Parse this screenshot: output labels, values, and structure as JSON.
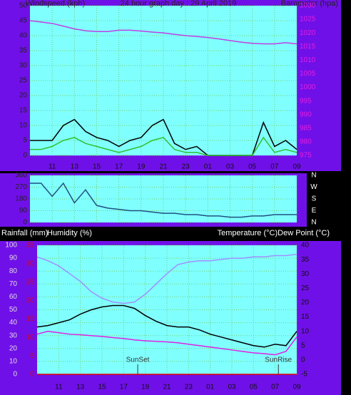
{
  "chart_data": [
    {
      "type": "line",
      "title": "24 hour graph day : 29 April 2019",
      "y_label": "Windspeed (kph)",
      "y2_label": "Barometer (hpa)",
      "x": [
        0,
        1,
        2,
        3,
        4,
        5,
        6,
        7,
        8,
        9,
        10,
        11,
        12,
        13,
        14,
        15,
        16,
        17,
        18,
        19,
        20,
        21,
        22,
        23,
        24
      ],
      "xlim": [
        0,
        24
      ],
      "xticks": [
        {
          "value": 2,
          "label": "11"
        },
        {
          "value": 4,
          "label": "13"
        },
        {
          "value": 6,
          "label": "15"
        },
        {
          "value": 8,
          "label": "17"
        },
        {
          "value": 10,
          "label": "19"
        },
        {
          "value": 12,
          "label": "21"
        },
        {
          "value": 14,
          "label": "23"
        },
        {
          "value": 16,
          "label": "01"
        },
        {
          "value": 18,
          "label": "03"
        },
        {
          "value": 20,
          "label": "05"
        },
        {
          "value": 22,
          "label": "07"
        },
        {
          "value": 24,
          "label": "09"
        }
      ],
      "ylim": [
        0,
        50
      ],
      "yticks": [
        0,
        5,
        10,
        15,
        20,
        25,
        30,
        35,
        40,
        45,
        50
      ],
      "y2lim": [
        975,
        1030
      ],
      "y2ticks": [
        975,
        980,
        985,
        990,
        995,
        1000,
        1005,
        1010,
        1015,
        1020,
        1025,
        1030
      ],
      "grid": true,
      "series": [
        {
          "color": "#000000",
          "values": [
            5,
            5,
            5,
            10,
            12,
            8,
            6,
            5,
            3,
            5,
            6,
            10,
            12,
            4,
            2,
            3,
            0,
            0,
            0,
            0,
            0,
            11,
            3,
            5,
            2
          ]
        },
        {
          "color": "#30c030",
          "values": [
            2,
            2,
            3,
            5,
            6,
            4,
            3,
            2,
            1,
            2,
            3,
            5,
            6,
            2,
            1,
            1,
            0,
            0,
            0,
            0,
            0,
            6,
            1,
            2,
            1
          ]
        },
        {
          "color": "#c040e0",
          "axis": "y2",
          "values": [
            1024.5,
            1024,
            1023.5,
            1022.5,
            1021.5,
            1020.8,
            1020.5,
            1020.5,
            1021,
            1021,
            1020.7,
            1020.3,
            1020,
            1019.5,
            1019,
            1018.7,
            1018.3,
            1017.8,
            1017.2,
            1016.6,
            1016.2,
            1016,
            1016,
            1016.4,
            1016
          ]
        }
      ]
    },
    {
      "type": "line",
      "x": [
        0,
        1,
        2,
        3,
        4,
        5,
        6,
        7,
        8,
        9,
        10,
        11,
        12,
        13,
        14,
        15,
        16,
        17,
        18,
        19,
        20,
        21,
        22,
        23,
        24
      ],
      "xlim": [
        0,
        24
      ],
      "ylim": [
        0,
        360
      ],
      "yticks": [
        0,
        90,
        180,
        270,
        360
      ],
      "compass_labels": [
        "N",
        "E",
        "S",
        "W",
        "N"
      ],
      "grid": true,
      "series": [
        {
          "color": "#205080",
          "values": [
            300,
            300,
            200,
            300,
            150,
            250,
            130,
            110,
            100,
            90,
            90,
            80,
            70,
            70,
            60,
            60,
            50,
            50,
            40,
            40,
            50,
            50,
            60,
            60,
            60
          ]
        }
      ]
    },
    {
      "type": "line",
      "y3_label": "Rainfall (mm)",
      "y_label": "Humidity (%)",
      "y2_label": "Temperature (°C)Dew Point (°C)",
      "x": [
        0,
        1,
        2,
        3,
        4,
        5,
        6,
        7,
        8,
        9,
        10,
        11,
        12,
        13,
        14,
        15,
        16,
        17,
        18,
        19,
        20,
        21,
        22,
        23,
        24
      ],
      "xlim": [
        0,
        24
      ],
      "xticks": [
        {
          "value": 2,
          "label": "11"
        },
        {
          "value": 4,
          "label": "13"
        },
        {
          "value": 6,
          "label": "15"
        },
        {
          "value": 8,
          "label": "17"
        },
        {
          "value": 10,
          "label": "19"
        },
        {
          "value": 12,
          "label": "21"
        },
        {
          "value": 14,
          "label": "23"
        },
        {
          "value": 16,
          "label": "01"
        },
        {
          "value": 18,
          "label": "03"
        },
        {
          "value": 20,
          "label": "05"
        },
        {
          "value": 22,
          "label": "07"
        },
        {
          "value": 24,
          "label": "09"
        }
      ],
      "ylim": [
        0,
        100
      ],
      "yticks": [
        0,
        10,
        20,
        30,
        40,
        50,
        60,
        70,
        80,
        90,
        100
      ],
      "y2lim": [
        -5,
        40
      ],
      "y2ticks": [
        -5,
        0,
        5,
        10,
        15,
        20,
        25,
        30,
        35,
        40
      ],
      "y3lim": [
        0,
        35
      ],
      "y3ticks": [
        0,
        5,
        10,
        15,
        20,
        25,
        30,
        35
      ],
      "grid": true,
      "annotations": [
        {
          "text": "SunSet",
          "x": 9.3
        },
        {
          "text": "SunRise",
          "x": 22.3
        }
      ],
      "series": [
        {
          "color": "#a090ff",
          "values": [
            91,
            88,
            84,
            78,
            72,
            64,
            59,
            56,
            55,
            56,
            62,
            70,
            78,
            85,
            87,
            88,
            88,
            89,
            90,
            90,
            91,
            91,
            92,
            92,
            93
          ]
        },
        {
          "color": "#000000",
          "axis": "y2",
          "values": [
            11.5,
            12,
            13,
            14,
            16,
            17.5,
            18.5,
            19,
            19,
            18,
            15.5,
            13.5,
            12,
            11.5,
            11.5,
            10.5,
            9,
            8,
            7,
            6,
            5,
            4.5,
            5.5,
            5,
            10
          ]
        },
        {
          "color": "#e020e0",
          "axis": "y2",
          "values": [
            9,
            10,
            9.5,
            9,
            8.8,
            8.5,
            8.2,
            7.8,
            7.5,
            7,
            6.7,
            6.5,
            6.3,
            6,
            5.5,
            5,
            4.5,
            4,
            3.5,
            3,
            2.5,
            2.2,
            1.8,
            3,
            8
          ]
        },
        {
          "color": "#e00000",
          "axis": "y3",
          "values": [
            0,
            0,
            0,
            0,
            0,
            0,
            0,
            0,
            0,
            0,
            0,
            0,
            0,
            0,
            0,
            0,
            0,
            0,
            0,
            0,
            0,
            0,
            0,
            0,
            0
          ]
        }
      ]
    }
  ]
}
